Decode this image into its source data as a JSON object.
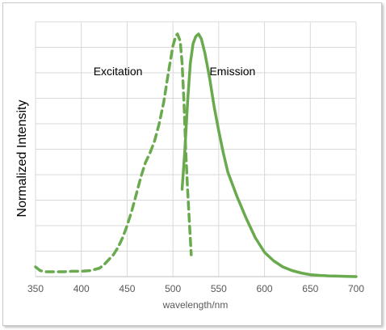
{
  "chart_data": {
    "type": "line",
    "title": "",
    "xlabel": "wavelength/nm",
    "ylabel": "Normalized Intensity",
    "xlim": [
      350,
      700
    ],
    "ylim": [
      0,
      1.05
    ],
    "x_ticks": [
      "350",
      "400",
      "450",
      "500",
      "550",
      "600",
      "650",
      "700"
    ],
    "grid": true,
    "legend": "none",
    "annotations": [
      {
        "text": "Excitation",
        "x": 440,
        "y": 0.83
      },
      {
        "text": "Emission",
        "x": 565,
        "y": 0.83
      }
    ],
    "series": [
      {
        "line_style": "dashed",
        "color": "#6aaa4f",
        "x": [
          350,
          355,
          360,
          370,
          380,
          390,
          400,
          410,
          420,
          425,
          430,
          435,
          440,
          445,
          450,
          455,
          460,
          465,
          470,
          475,
          480,
          485,
          490,
          495,
          500,
          503,
          505,
          508,
          510,
          512,
          514,
          516,
          518,
          520
        ],
        "y": [
          0.04,
          0.025,
          0.02,
          0.02,
          0.02,
          0.022,
          0.022,
          0.025,
          0.035,
          0.05,
          0.07,
          0.09,
          0.12,
          0.16,
          0.21,
          0.27,
          0.34,
          0.41,
          0.47,
          0.51,
          0.56,
          0.63,
          0.72,
          0.84,
          0.95,
          0.99,
          1.0,
          0.97,
          0.88,
          0.72,
          0.52,
          0.36,
          0.22,
          0.09
        ]
      },
      {
        "line_style": "solid",
        "color": "#6aaa4f",
        "x": [
          510,
          513,
          516,
          519,
          522,
          525,
          528,
          531,
          535,
          540,
          545,
          550,
          555,
          560,
          570,
          580,
          590,
          600,
          610,
          620,
          630,
          640,
          650,
          660,
          670,
          680,
          690,
          700
        ],
        "y": [
          0.36,
          0.52,
          0.72,
          0.88,
          0.96,
          0.99,
          1.0,
          0.98,
          0.92,
          0.82,
          0.7,
          0.6,
          0.51,
          0.43,
          0.33,
          0.24,
          0.16,
          0.1,
          0.065,
          0.04,
          0.025,
          0.015,
          0.008,
          0.005,
          0.003,
          0.002,
          0.001,
          0.0
        ]
      }
    ]
  }
}
